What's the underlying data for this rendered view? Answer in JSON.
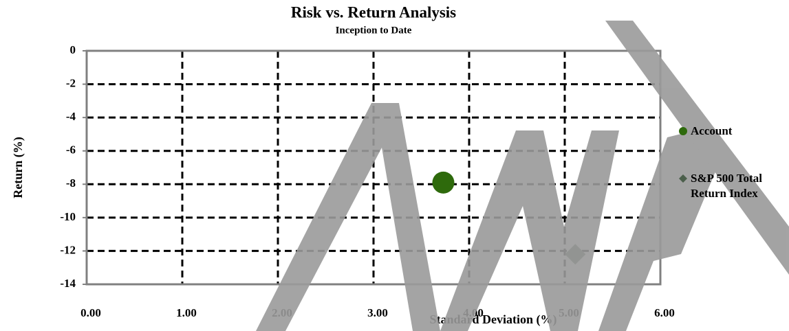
{
  "chart_data": {
    "type": "scatter",
    "title": "Risk vs. Return Analysis",
    "subtitle": "Inception to Date",
    "x_label": "Standard Deviation (%)",
    "y_label": "Return (%)",
    "xlim": [
      0,
      6
    ],
    "xticks": [
      {
        "value": 0,
        "label": "0.00"
      },
      {
        "value": 1,
        "label": "1.00"
      },
      {
        "value": 2,
        "label": "2.00"
      },
      {
        "value": 3,
        "label": "3.00"
      },
      {
        "value": 4,
        "label": "4.00"
      },
      {
        "value": 5,
        "label": "5.00"
      },
      {
        "value": 6,
        "label": "6.00"
      }
    ],
    "ylim": [
      -14,
      0
    ],
    "yticks": [
      -14,
      -12,
      -10,
      -8,
      -6,
      -4,
      -2,
      0
    ],
    "grid": true,
    "series": [
      {
        "name": "Account",
        "color": "#2e6a0c",
        "marker": "circle",
        "x": [
          3.73
        ],
        "values": [
          -7.9
        ]
      },
      {
        "name": "S&P 500 Total Return Index",
        "color": "#4b5f4b",
        "marker": "diamond",
        "x": [
          5.11
        ],
        "values": [
          -12.2
        ]
      }
    ]
  }
}
